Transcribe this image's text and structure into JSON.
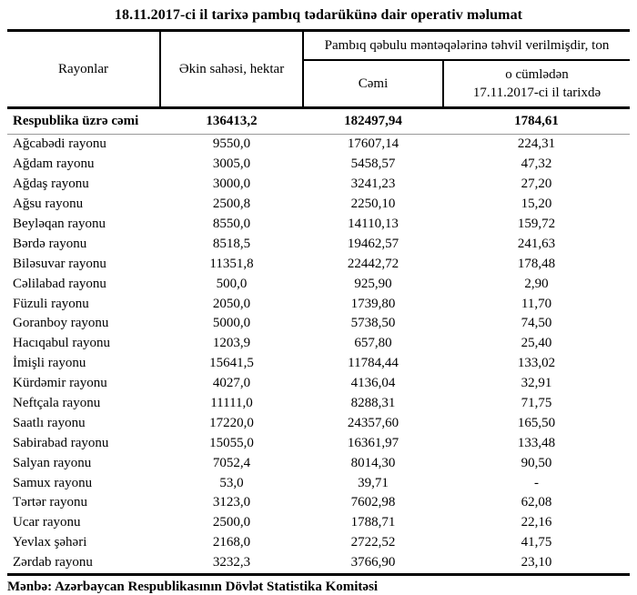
{
  "title": "18.11.2017-ci il tarixə pambıq tədarükünə dair operativ məlumat",
  "colors": {
    "text": "#000000",
    "background": "#ffffff",
    "thick_rule": "#000000",
    "thin_rule": "#999999"
  },
  "table": {
    "headers": {
      "rayonlar": "Rayonlar",
      "ekin_sahesi": "Əkin sahəsi, hektar",
      "tehvil_group": "Pambıq qəbulu məntəqələrinə təhvil verilmişdir, ton",
      "cemi": "Cəmi",
      "o_cumleden_line1": "o cümlədən",
      "o_cumleden_line2": "17.11.2017-ci il tarixdə"
    },
    "total_row": {
      "name": "Respublika üzrə cəmi",
      "values": [
        "136413,2",
        "182497,94",
        "1784,61"
      ]
    },
    "rows": [
      {
        "name": "Ağcabədi rayonu",
        "values": [
          "9550,0",
          "17607,14",
          "224,31"
        ]
      },
      {
        "name": "Ağdam rayonu",
        "values": [
          "3005,0",
          "5458,57",
          "47,32"
        ]
      },
      {
        "name": "Ağdaş rayonu",
        "values": [
          "3000,0",
          "3241,23",
          "27,20"
        ]
      },
      {
        "name": "Ağsu rayonu",
        "values": [
          "2500,8",
          "2250,10",
          "15,20"
        ]
      },
      {
        "name": "Beyləqan rayonu",
        "values": [
          "8550,0",
          "14110,13",
          "159,72"
        ]
      },
      {
        "name": "Bərdə rayonu",
        "values": [
          "8518,5",
          "19462,57",
          "241,63"
        ]
      },
      {
        "name": "Biləsuvar rayonu",
        "values": [
          "11351,8",
          "22442,72",
          "178,48"
        ]
      },
      {
        "name": "Cəlilabad rayonu",
        "values": [
          "500,0",
          "925,90",
          "2,90"
        ]
      },
      {
        "name": "Füzuli rayonu",
        "values": [
          "2050,0",
          "1739,80",
          "11,70"
        ]
      },
      {
        "name": "Goranboy rayonu",
        "values": [
          "5000,0",
          "5738,50",
          "74,50"
        ]
      },
      {
        "name": "Hacıqabul rayonu",
        "values": [
          "1203,9",
          "657,80",
          "25,40"
        ]
      },
      {
        "name": "İmişli rayonu",
        "values": [
          "15641,5",
          "11784,44",
          "133,02"
        ]
      },
      {
        "name": "Kürdəmir rayonu",
        "values": [
          "4027,0",
          "4136,04",
          "32,91"
        ]
      },
      {
        "name": "Neftçala rayonu",
        "values": [
          "11111,0",
          "8288,31",
          "71,75"
        ]
      },
      {
        "name": "Saatlı rayonu",
        "values": [
          "17220,0",
          "24357,60",
          "165,50"
        ]
      },
      {
        "name": "Sabirabad rayonu",
        "values": [
          "15055,0",
          "16361,97",
          "133,48"
        ]
      },
      {
        "name": "Salyan rayonu",
        "values": [
          "7052,4",
          "8014,30",
          "90,50"
        ]
      },
      {
        "name": "Samux rayonu",
        "values": [
          "53,0",
          "39,71",
          "-"
        ]
      },
      {
        "name": "Tərtər rayonu",
        "values": [
          "3123,0",
          "7602,98",
          "62,08"
        ]
      },
      {
        "name": "Ucar rayonu",
        "values": [
          "2500,0",
          "1788,71",
          "22,16"
        ]
      },
      {
        "name": "Yevlax şəhəri",
        "values": [
          "2168,0",
          "2722,52",
          "41,75"
        ]
      },
      {
        "name": "Zərdab rayonu",
        "values": [
          "3232,3",
          "3766,90",
          "23,10"
        ]
      }
    ]
  },
  "footer": "Mənbə: Azərbaycan Respublikasının Dövlət Statistika Komitəsi"
}
